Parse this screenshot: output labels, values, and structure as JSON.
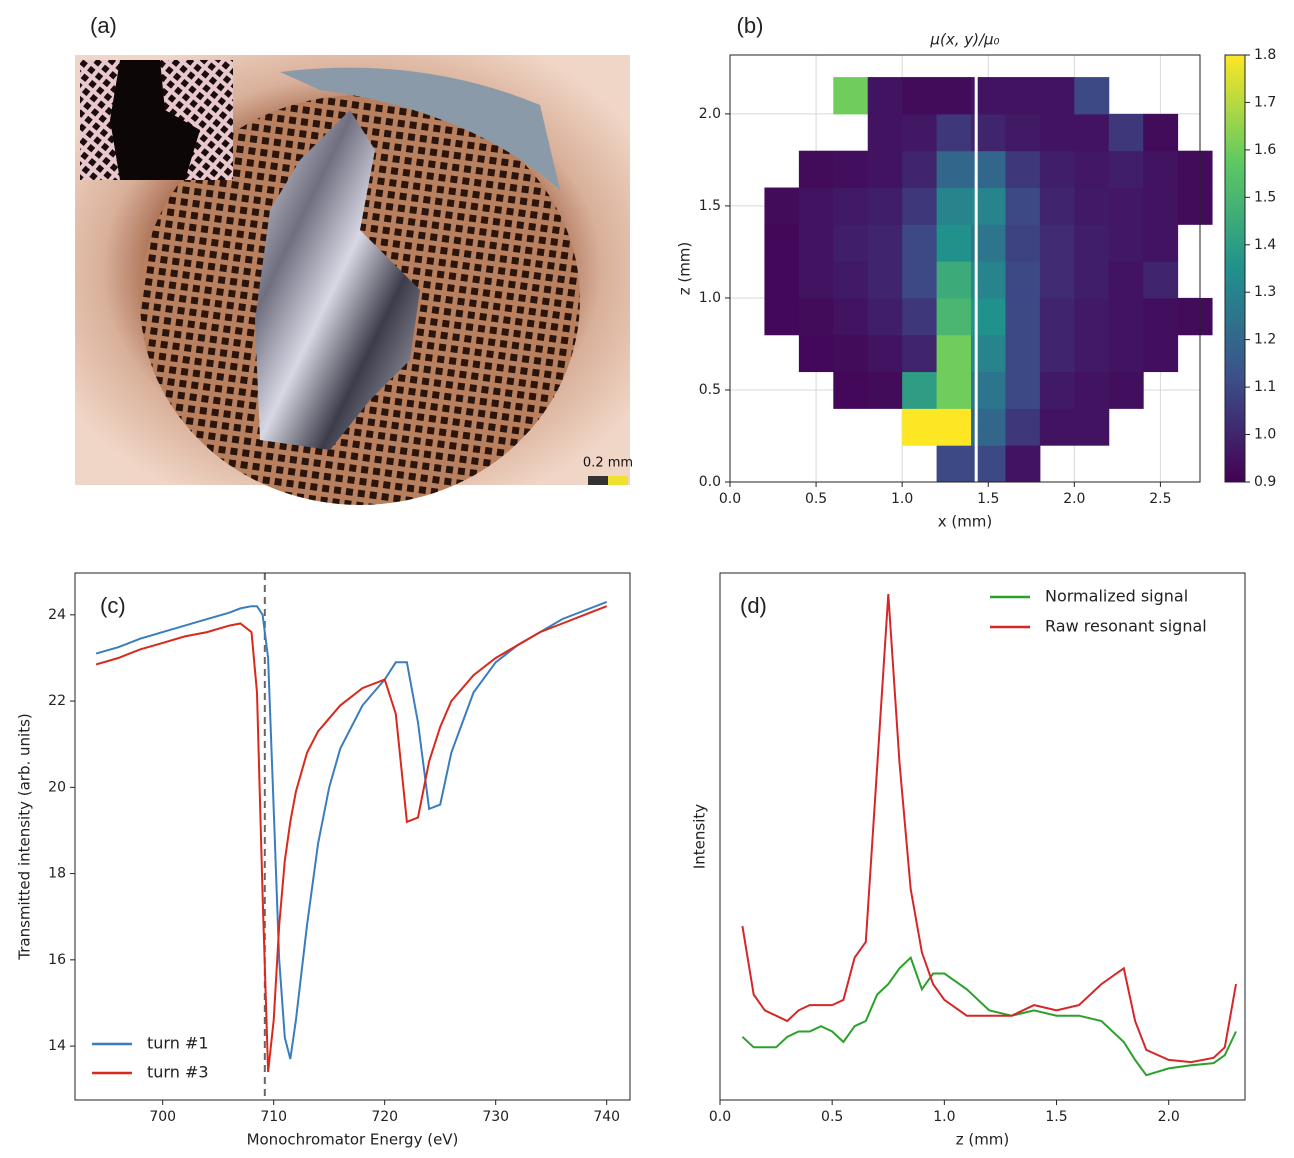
{
  "chart_data": [
    {
      "type": "image",
      "panel_label": "(a)",
      "scale_label": "0.2 mm"
    },
    {
      "type": "heatmap",
      "panel_label": "(b)",
      "title": "μ(x, y)/μ₀",
      "x_label": "x (mm)",
      "y_label": "z (mm)",
      "x": [
        0.1,
        0.3,
        0.5,
        0.7,
        0.9,
        1.1,
        1.3,
        1.5,
        1.7,
        1.9,
        2.1,
        2.3,
        2.5,
        2.7
      ],
      "y": [
        0.1,
        0.3,
        0.5,
        0.7,
        0.9,
        1.1,
        1.3,
        1.5,
        1.7,
        1.9,
        2.1
      ],
      "values": [
        [
          null,
          null,
          null,
          null,
          null,
          null,
          1.1,
          1.1,
          0.95,
          null,
          null,
          null,
          null,
          null
        ],
        [
          null,
          null,
          null,
          null,
          null,
          1.8,
          1.8,
          1.2,
          1.05,
          0.95,
          0.95,
          null,
          null,
          null
        ],
        [
          null,
          null,
          null,
          0.92,
          0.93,
          1.4,
          1.6,
          1.25,
          1.1,
          0.97,
          0.95,
          0.94,
          null,
          null
        ],
        [
          null,
          null,
          0.92,
          0.93,
          0.95,
          1.0,
          1.6,
          1.3,
          1.1,
          1.0,
          0.97,
          0.95,
          0.94,
          null
        ],
        [
          null,
          0.92,
          0.93,
          0.95,
          0.98,
          1.05,
          1.5,
          1.35,
          1.1,
          1.0,
          0.97,
          0.95,
          0.94,
          0.93
        ],
        [
          null,
          0.92,
          0.95,
          0.97,
          1.0,
          1.1,
          1.45,
          1.3,
          1.1,
          1.02,
          0.98,
          0.95,
          1.0,
          null
        ],
        [
          null,
          0.92,
          0.95,
          0.98,
          1.0,
          1.1,
          1.35,
          1.25,
          1.08,
          1.02,
          0.98,
          0.96,
          0.95,
          null
        ],
        [
          null,
          0.93,
          0.95,
          0.97,
          0.98,
          1.05,
          1.3,
          1.3,
          1.1,
          1.0,
          0.97,
          0.96,
          0.95,
          0.93
        ],
        [
          null,
          null,
          0.93,
          0.94,
          0.95,
          1.0,
          1.2,
          1.2,
          1.05,
          0.98,
          0.96,
          0.98,
          0.95,
          0.93
        ],
        [
          null,
          null,
          null,
          null,
          0.95,
          0.96,
          1.05,
          1.0,
          0.97,
          0.95,
          0.95,
          1.05,
          0.93,
          null
        ],
        [
          null,
          null,
          null,
          1.6,
          0.95,
          0.93,
          0.93,
          0.95,
          0.95,
          0.95,
          1.1,
          null,
          null,
          null
        ]
      ],
      "cell": 0.2,
      "vline_x": 1.43,
      "colormap": "viridis",
      "grid": true,
      "xlim": [
        0,
        2.73
      ],
      "ylim": [
        0,
        2.32
      ],
      "xticks": [
        {
          "value": 0,
          "label": "0.0"
        },
        0.5,
        {
          "value": 1,
          "label": "1.0"
        },
        1.5,
        {
          "value": 2,
          "label": "2.0"
        },
        2.5
      ],
      "yticks": [
        {
          "value": 0,
          "label": "0.0"
        },
        0.5,
        {
          "value": 1,
          "label": "1.0"
        },
        1.5,
        {
          "value": 2,
          "label": "2.0"
        }
      ],
      "clim": [
        0.9,
        1.8
      ],
      "cticks": [
        0.9,
        {
          "value": 1,
          "label": "1.0"
        },
        1.1,
        1.2,
        1.3,
        1.4,
        1.5,
        1.6,
        1.7,
        1.8
      ]
    },
    {
      "type": "line",
      "panel_label": "(c)",
      "x_label": "Monochromator Energy (eV)",
      "y_label": "Transmitted intensity (arb. units)",
      "x": [
        694,
        696,
        698,
        700,
        702,
        704,
        706,
        707,
        708,
        708.5,
        709,
        709.5,
        710,
        710.5,
        711,
        711.5,
        712,
        713,
        714,
        715,
        716,
        718,
        720,
        721,
        722,
        723,
        724,
        725,
        726,
        728,
        730,
        732,
        734,
        736,
        738,
        740
      ],
      "series": [
        {
          "name": "turn #1",
          "color": "#3a7dbf",
          "values": [
            23.1,
            23.25,
            23.45,
            23.6,
            23.75,
            23.9,
            24.05,
            24.15,
            24.2,
            24.2,
            24.0,
            23.0,
            19.5,
            16.0,
            14.2,
            13.7,
            14.6,
            16.8,
            18.7,
            20.0,
            20.9,
            21.9,
            22.5,
            22.9,
            22.9,
            21.5,
            19.5,
            19.6,
            20.8,
            22.2,
            22.9,
            23.3,
            23.6,
            23.9,
            24.1,
            24.3
          ]
        },
        {
          "name": "turn #3",
          "color": "#d9281c",
          "values": [
            22.85,
            23.0,
            23.2,
            23.35,
            23.5,
            23.6,
            23.75,
            23.8,
            23.6,
            22.2,
            17.5,
            13.4,
            14.6,
            16.8,
            18.3,
            19.2,
            19.9,
            20.8,
            21.3,
            21.6,
            21.9,
            22.3,
            22.5,
            21.7,
            19.2,
            19.3,
            20.6,
            21.4,
            22.0,
            22.6,
            23.0,
            23.3,
            23.6,
            23.8,
            24.0,
            24.2
          ]
        }
      ],
      "vline_x": 709.2,
      "legend": "lower-left",
      "xlim": [
        692.1,
        742.1
      ],
      "ylim": [
        12.75,
        24.97
      ],
      "xticks": [
        700,
        710,
        720,
        730,
        740
      ],
      "yticks": [
        14,
        16,
        18,
        20,
        22,
        24
      ]
    },
    {
      "type": "line",
      "panel_label": "(d)",
      "x_label": "z (mm)",
      "y_label": "Intensity",
      "x": [
        0.1,
        0.15,
        0.2,
        0.25,
        0.3,
        0.35,
        0.4,
        0.45,
        0.5,
        0.55,
        0.6,
        0.65,
        0.7,
        0.75,
        0.8,
        0.85,
        0.9,
        0.95,
        1.0,
        1.1,
        1.2,
        1.3,
        1.4,
        1.5,
        1.6,
        1.7,
        1.8,
        1.85,
        1.9,
        2.0,
        2.1,
        2.2,
        2.25,
        2.3
      ],
      "series": [
        {
          "name": "Normalized signal",
          "color": "#2ca02c",
          "values": [
            0.12,
            0.1,
            0.1,
            0.1,
            0.12,
            0.13,
            0.13,
            0.14,
            0.13,
            0.11,
            0.14,
            0.15,
            0.2,
            0.22,
            0.25,
            0.27,
            0.21,
            0.24,
            0.24,
            0.21,
            0.17,
            0.16,
            0.17,
            0.16,
            0.16,
            0.15,
            0.11,
            0.076,
            0.047,
            0.06,
            0.066,
            0.07,
            0.085,
            0.13
          ]
        },
        {
          "name": "Raw resonant signal",
          "color": "#d62728",
          "values": [
            0.33,
            0.2,
            0.17,
            0.16,
            0.15,
            0.17,
            0.18,
            0.18,
            0.18,
            0.19,
            0.27,
            0.3,
            0.63,
            0.96,
            0.64,
            0.4,
            0.28,
            0.22,
            0.19,
            0.16,
            0.16,
            0.16,
            0.18,
            0.17,
            0.18,
            0.22,
            0.25,
            0.15,
            0.095,
            0.076,
            0.072,
            0.08,
            0.1,
            0.22
          ]
        }
      ],
      "legend": "upper-right",
      "xlim": [
        0,
        2.34
      ],
      "ylim": [
        0,
        1
      ],
      "xticks": [
        {
          "value": 0,
          "label": "0.0"
        },
        0.5,
        {
          "value": 1,
          "label": "1.0"
        },
        1.5,
        {
          "value": 2,
          "label": "2.0"
        }
      ],
      "yticks": []
    }
  ]
}
